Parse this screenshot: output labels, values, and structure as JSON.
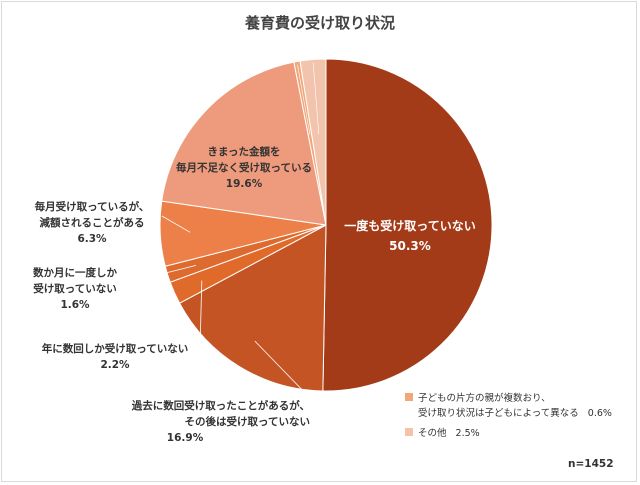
{
  "chart_data": {
    "type": "pie",
    "title": "養育費の受け取り状況",
    "n_label": "n=1452",
    "slices": [
      {
        "label": "一度も受け取っていない",
        "value": 50.3,
        "value_label": "50.3%",
        "color": "#a33b18"
      },
      {
        "label": "過去に数回受け取ったことがあるが、その後は受け取っていない",
        "label_lines": [
          "過去に数回受け取ったことがあるが、",
          "その後は受け取っていない"
        ],
        "value": 16.9,
        "value_label": "16.9%",
        "color": "#c55425"
      },
      {
        "label": "年に数回しか受け取っていない",
        "label_lines": [
          "年に数回しか受け取っていない"
        ],
        "value": 2.2,
        "value_label": "2.2%",
        "color": "#e06a2a"
      },
      {
        "label": "数か月に一度しか受け取っていない",
        "label_lines": [
          "数か月に一度しか",
          "受け取っていない"
        ],
        "value": 1.6,
        "value_label": "1.6%",
        "color": "#dd6a2e"
      },
      {
        "label": "毎月受け取っているが、減額されることがある",
        "label_lines": [
          "毎月受け取っているが、",
          "減額されることがある"
        ],
        "value": 6.3,
        "value_label": "6.3%",
        "color": "#ec8048"
      },
      {
        "label": "きまった金額を毎月不足なく受け取っている",
        "label_lines": [
          "きまった金額を",
          "毎月不足なく受け取っている"
        ],
        "value": 19.6,
        "value_label": "19.6%",
        "color": "#ee9a7c"
      },
      {
        "label": "子どもの片方の親が複数おり、受け取り状況は子どもによって異なる",
        "label_lines": [
          "子どもの片方の親が複数おり、",
          "受け取り状況は子どもによって異なる"
        ],
        "value": 0.6,
        "value_label": "0.6%",
        "color": "#f0a77a"
      },
      {
        "label": "その他",
        "label_lines": [
          "その他"
        ],
        "value": 2.5,
        "value_label": "2.5%",
        "color": "#f2c4ae"
      }
    ]
  }
}
